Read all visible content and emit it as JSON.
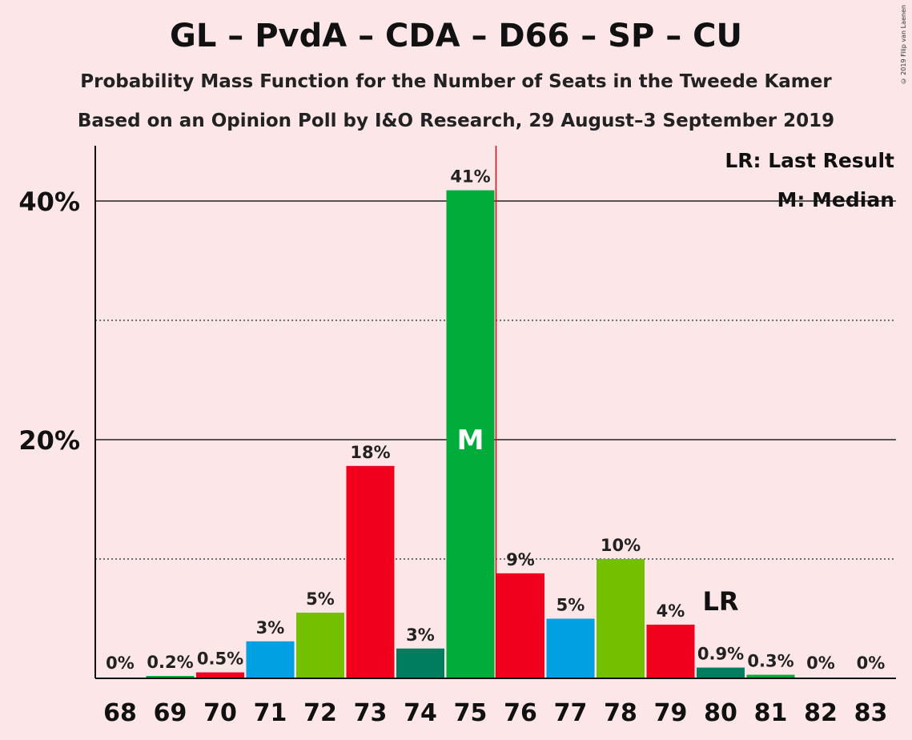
{
  "title": "GL – PvdA – CDA – D66 – SP – CU",
  "subtitle1": "Probability Mass Function for the Number of Seats in the Tweede Kamer",
  "subtitle2": "Based on an Opinion Poll by I&O Research, 29 August–3 September 2019",
  "copyright": "© 2019 Filip van Laenen",
  "legend": {
    "lr": "LR: Last Result",
    "median": "M: Median"
  },
  "markers": {
    "median_label": "M",
    "lr_label": "LR",
    "median_seat": 75,
    "last_result_seat": 80
  },
  "colors": [
    "#e3000f",
    "#73bf00",
    "#00ad3b",
    "#00a0e2",
    "#007c5f",
    "#f0001c"
  ],
  "chart_data": {
    "type": "bar",
    "categories": [
      "68",
      "69",
      "70",
      "71",
      "72",
      "73",
      "74",
      "75",
      "76",
      "77",
      "78",
      "79",
      "80",
      "81",
      "82",
      "83"
    ],
    "values": [
      0,
      0.2,
      0.5,
      3.1,
      5.5,
      17.8,
      2.5,
      40.9,
      8.8,
      5.0,
      10.0,
      4.5,
      0.9,
      0.3,
      0,
      0
    ],
    "data_labels": [
      "0%",
      "0.2%",
      "0.5%",
      "3%",
      "5%",
      "18%",
      "3%",
      "41%",
      "9%",
      "5%",
      "10%",
      "4%",
      "0.9%",
      "0.3%",
      "0%",
      "0%"
    ],
    "bar_colors": [
      "#00ad3b",
      "#00ad3b",
      "#f0001c",
      "#00a0e2",
      "#73bf00",
      "#f0001c",
      "#007c5f",
      "#00ad3b",
      "#f0001c",
      "#00a0e2",
      "#73bf00",
      "#f0001c",
      "#007c5f",
      "#00ad3b",
      "#00ad3b",
      "#00ad3b"
    ],
    "y_ticks": [
      20,
      40
    ],
    "y_tick_labels": [
      "20%",
      "40%"
    ],
    "y_minor_ticks": [
      10,
      30
    ],
    "ylim": [
      0,
      45
    ],
    "grid": true,
    "legend_position": "top-right"
  }
}
